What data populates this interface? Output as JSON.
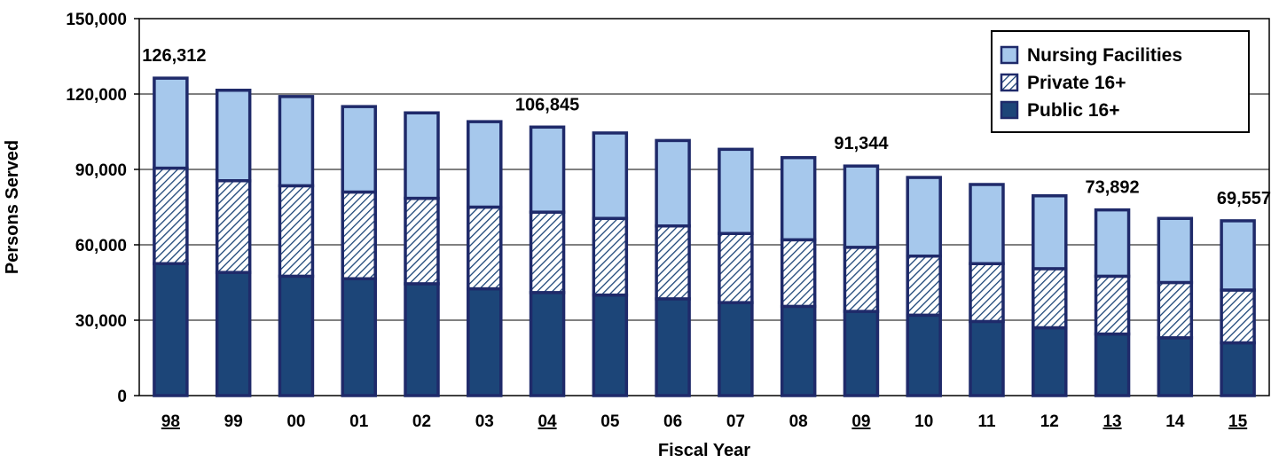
{
  "chart_data": {
    "type": "bar",
    "stacked": true,
    "xlabel": "Fiscal Year",
    "ylabel": "Persons Served",
    "ylim": [
      0,
      150000
    ],
    "yticks": [
      0,
      30000,
      60000,
      90000,
      120000,
      150000
    ],
    "ytick_labels": [
      "0",
      "30,000",
      "60,000",
      "90,000",
      "120,000",
      "150,000"
    ],
    "grid": true,
    "legend_position": "top-right",
    "categories": [
      "98",
      "99",
      "00",
      "01",
      "02",
      "03",
      "04",
      "05",
      "06",
      "07",
      "08",
      "09",
      "10",
      "11",
      "12",
      "13",
      "14",
      "15"
    ],
    "underlined_categories": [
      "98",
      "04",
      "09",
      "13",
      "15"
    ],
    "series": [
      {
        "name": "Public 16+",
        "color": "#1c4578",
        "pattern": "solid",
        "values": [
          52500,
          49000,
          47500,
          46500,
          44500,
          42500,
          41000,
          40000,
          38500,
          37000,
          35500,
          33500,
          32000,
          29500,
          27000,
          24500,
          23000,
          21000
        ]
      },
      {
        "name": "Private 16+",
        "color": "#1c4578",
        "pattern": "hatched",
        "values": [
          38000,
          36500,
          36000,
          34500,
          34000,
          32500,
          32000,
          30500,
          29000,
          27500,
          26500,
          25500,
          23500,
          23000,
          23500,
          23000,
          22000,
          21000
        ]
      },
      {
        "name": "Nursing Facilities",
        "color": "#a6c8ec",
        "pattern": "solid",
        "values": [
          35812,
          36000,
          35500,
          34000,
          34000,
          34000,
          33845,
          34000,
          34000,
          33500,
          32700,
          32344,
          31300,
          31500,
          29000,
          26392,
          25500,
          27557
        ]
      }
    ],
    "totals_labels": [
      {
        "category": "98",
        "label": "126,312"
      },
      {
        "category": "04",
        "label": "106,845"
      },
      {
        "category": "09",
        "label": "91,344"
      },
      {
        "category": "13",
        "label": "73,892"
      },
      {
        "category": "15",
        "label": "69,557"
      }
    ]
  }
}
